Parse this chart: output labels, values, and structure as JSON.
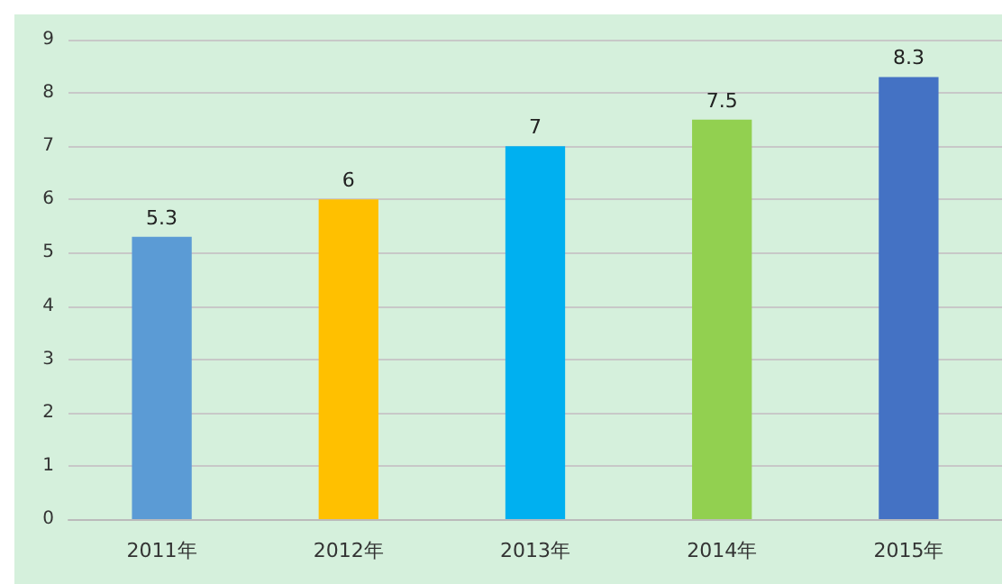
{
  "chart_data": {
    "type": "bar",
    "categories": [
      "2011年",
      "2012年",
      "2013年",
      "2014年",
      "2015年"
    ],
    "values": [
      5.3,
      6,
      7,
      7.5,
      8.3
    ],
    "colors": [
      "#5b9bd5",
      "#ffc000",
      "#00b0f0",
      "#92d050",
      "#4472c4"
    ],
    "ylim": [
      0,
      9
    ],
    "yticks": [
      0,
      1,
      2,
      3,
      4,
      5,
      6,
      7,
      8,
      9
    ],
    "grid": "y",
    "data_labels": true
  }
}
